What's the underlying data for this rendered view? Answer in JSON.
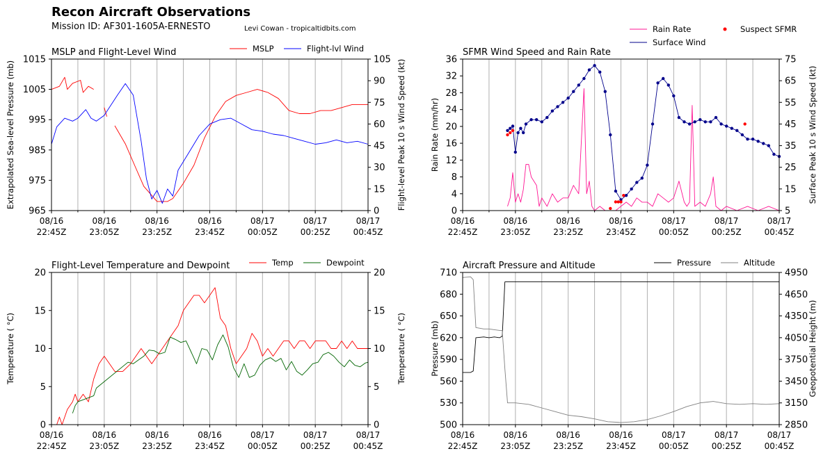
{
  "header": {
    "title": "Recon Aircraft Observations",
    "mission": "Mission ID: AF301-1605A-ERNESTO",
    "credit": "Levi Cowan - tropicaltidbits.com"
  },
  "x_ticks": [
    {
      "date": "08/16",
      "time": "22:45Z"
    },
    {
      "date": "08/16",
      "time": "23:05Z"
    },
    {
      "date": "08/16",
      "time": "23:25Z"
    },
    {
      "date": "08/16",
      "time": "23:45Z"
    },
    {
      "date": "08/17",
      "time": "00:05Z"
    },
    {
      "date": "08/17",
      "time": "00:25Z"
    },
    {
      "date": "08/17",
      "time": "00:45Z"
    }
  ],
  "chart_data": [
    {
      "type": "line",
      "title": "MSLP and Flight-Level Wind",
      "ylabel": "Extrapolated Sea-level Pressure (mb)",
      "y2label": "Flight-level Peak 10 s Wind Speed (kt)",
      "ylim": [
        965,
        1015
      ],
      "y2lim": [
        0,
        105
      ],
      "yticks": [
        965,
        975,
        985,
        995,
        1005,
        1015
      ],
      "y2ticks": [
        0,
        15,
        30,
        45,
        60,
        75,
        90,
        105
      ],
      "legend": "top-right",
      "grid": "vertical",
      "series": [
        {
          "name": "MSLP",
          "color": "#ff0000",
          "axis": "left",
          "x": [
            0,
            3,
            5,
            6,
            8,
            11,
            12,
            14,
            16,
            17,
            20,
            21,
            23,
            24,
            28,
            32,
            35,
            38,
            40,
            44,
            46,
            50,
            54,
            58,
            62,
            66,
            70,
            74,
            78,
            82,
            86,
            90,
            94,
            98,
            102,
            106,
            110,
            114,
            118,
            120
          ],
          "y": [
            1005,
            1006,
            1009,
            1005,
            1007,
            1008,
            1004,
            1006,
            1005,
            null,
            999,
            996,
            null,
            993,
            987,
            979,
            973,
            970,
            968,
            968,
            969,
            974,
            980,
            989,
            996,
            1001,
            1003,
            1004,
            1005,
            1004,
            1002,
            998,
            997,
            997,
            998,
            998,
            999,
            1000,
            1000,
            1000
          ]
        },
        {
          "name": "Flight-lvl Wind",
          "color": "#0000ff",
          "axis": "right",
          "x": [
            0,
            2,
            5,
            8,
            10,
            13,
            15,
            17,
            20,
            25,
            28,
            31,
            34,
            36,
            38,
            40,
            42,
            44,
            46,
            48,
            52,
            56,
            60,
            64,
            68,
            72,
            76,
            80,
            84,
            88,
            92,
            96,
            100,
            104,
            108,
            112,
            116,
            120
          ],
          "y": [
            46,
            58,
            64,
            62,
            64,
            70,
            64,
            62,
            66,
            80,
            88,
            80,
            48,
            22,
            8,
            14,
            5,
            15,
            10,
            28,
            40,
            52,
            60,
            63,
            64,
            60,
            56,
            55,
            53,
            52,
            50,
            48,
            46,
            47,
            49,
            47,
            48,
            46
          ]
        }
      ]
    },
    {
      "type": "line",
      "title": "SFMR Wind Speed and Rain Rate",
      "ylabel": "Rain Rate (mm/hr)",
      "y2label": "Surface Peak 10 s Wind Speed (kt)",
      "ylim": [
        0,
        36
      ],
      "y2lim": [
        5,
        75
      ],
      "yticks": [
        0,
        4,
        8,
        12,
        16,
        20,
        24,
        28,
        32,
        36
      ],
      "y2ticks": [
        5,
        15,
        25,
        35,
        45,
        55,
        65,
        75
      ],
      "legend": "above-plot",
      "grid": "vertical",
      "series": [
        {
          "name": "Rain Rate",
          "color": "#ff1493",
          "axis": "left",
          "x": [
            17,
            18,
            19,
            20,
            21,
            22,
            23,
            24,
            25,
            26,
            28,
            29,
            30,
            32,
            34,
            36,
            38,
            40,
            42,
            44,
            46,
            47,
            48,
            49,
            50,
            52,
            54,
            56,
            58,
            60,
            62,
            64,
            66,
            68,
            70,
            72,
            74,
            76,
            78,
            80,
            82,
            84,
            85,
            86,
            87,
            88,
            90,
            92,
            94,
            95,
            96,
            98,
            100,
            104,
            108,
            112,
            116,
            120
          ],
          "y": [
            1,
            3,
            9,
            2,
            4,
            2,
            5,
            11,
            11,
            8,
            6,
            1,
            3,
            1,
            4,
            2,
            3,
            3,
            6,
            4,
            29,
            4,
            7,
            1,
            0,
            1,
            0,
            0,
            0,
            1,
            2,
            1,
            3,
            2,
            2,
            1,
            4,
            3,
            2,
            3,
            7,
            2,
            1,
            2,
            25,
            1,
            2,
            1,
            4,
            8,
            1,
            0,
            1,
            0,
            1,
            0,
            1,
            0
          ]
        },
        {
          "name": "Surface Wind",
          "color": "#00008b",
          "axis": "right",
          "markers": true,
          "x": [
            17,
            18,
            19,
            20,
            21,
            22,
            23,
            24,
            26,
            28,
            30,
            32,
            34,
            36,
            38,
            40,
            42,
            44,
            46,
            48,
            50,
            52,
            54,
            56,
            58,
            60,
            62,
            64,
            66,
            68,
            70,
            72,
            74,
            76,
            78,
            80,
            82,
            84,
            86,
            88,
            90,
            92,
            94,
            96,
            98,
            100,
            102,
            104,
            106,
            108,
            110,
            112,
            114,
            116,
            118,
            120
          ],
          "y": [
            42,
            43,
            44,
            32,
            41,
            43,
            41,
            45,
            47,
            47,
            46,
            48,
            51,
            53,
            55,
            57,
            60,
            63,
            66,
            70,
            72,
            69,
            60,
            40,
            14,
            10,
            12,
            15,
            18,
            20,
            26,
            45,
            64,
            66,
            63,
            58,
            48,
            46,
            45,
            46,
            47,
            46,
            46,
            48,
            45,
            44,
            43,
            42,
            40,
            38,
            38,
            37,
            36,
            35,
            31,
            30
          ]
        },
        {
          "name": "Suspect SFMR",
          "color": "#ff0000",
          "axis": "right",
          "markers_only": true,
          "x": [
            17,
            18,
            19,
            56,
            58,
            59,
            60,
            61,
            107
          ],
          "y": [
            40,
            41,
            42,
            6,
            9,
            9,
            9,
            12,
            45
          ]
        }
      ]
    },
    {
      "type": "line",
      "title": "Flight-Level Temperature and Dewpoint",
      "ylabel": "Temperature ( °C)",
      "y2label": "Temperature ( °C)",
      "ylim": [
        0,
        20
      ],
      "y2lim": [
        0,
        20
      ],
      "yticks": [
        0,
        5,
        10,
        15,
        20
      ],
      "y2ticks": [
        0,
        5,
        10,
        15,
        20
      ],
      "legend": "top-right",
      "grid": "vertical",
      "series": [
        {
          "name": "Temp",
          "color": "#ff0000",
          "x": [
            2,
            3,
            4,
            6,
            8,
            9,
            10,
            12,
            14,
            16,
            18,
            20,
            22,
            24,
            27,
            30,
            32,
            34,
            36,
            38,
            40,
            42,
            44,
            46,
            48,
            50,
            52,
            54,
            56,
            58,
            60,
            62,
            64,
            66,
            68,
            70,
            72,
            74,
            76,
            78,
            80,
            82,
            84,
            86,
            88,
            90,
            92,
            94,
            96,
            98,
            100,
            102,
            104,
            106,
            108,
            110,
            112,
            114,
            116,
            118,
            120
          ],
          "y": [
            0,
            1,
            0,
            2,
            3,
            4,
            3,
            4,
            3,
            6,
            8,
            9,
            8,
            7,
            7,
            8,
            9,
            10,
            9,
            8,
            9,
            10,
            11,
            12,
            13,
            15,
            16,
            17,
            17,
            16,
            17,
            18,
            14,
            13,
            10,
            8,
            9,
            10,
            12,
            11,
            9,
            10,
            9,
            10,
            11,
            11,
            10,
            11,
            11,
            10,
            11,
            11,
            11,
            10,
            10,
            11,
            10,
            11,
            10,
            10,
            10
          ]
        },
        {
          "name": "Dewpoint",
          "color": "#006400",
          "x": [
            8,
            9,
            10,
            16,
            17,
            29,
            31,
            33,
            35,
            37,
            39,
            41,
            43,
            45,
            47,
            49,
            51,
            53,
            55,
            57,
            59,
            61,
            63,
            65,
            67,
            69,
            71,
            73,
            75,
            77,
            79,
            81,
            83,
            85,
            87,
            89,
            91,
            93,
            95,
            97,
            99,
            101,
            103,
            105,
            107,
            109,
            111,
            113,
            115,
            117,
            119,
            120
          ],
          "y": [
            1.5,
            2.5,
            3,
            3.8,
            4.8,
            8.2,
            8,
            8.5,
            9,
            9.8,
            9.7,
            9.3,
            9.5,
            11.5,
            11.2,
            10.8,
            11,
            9.5,
            8,
            10,
            9.8,
            8.5,
            10.5,
            11.8,
            10.2,
            7.5,
            6.2,
            8,
            6.2,
            6.5,
            7.8,
            8.5,
            8.8,
            8.3,
            8.7,
            7.2,
            8.3,
            7,
            6.5,
            7.2,
            8,
            8.2,
            9.2,
            9.5,
            9,
            8.2,
            7.6,
            8.5,
            7.8,
            7.6,
            8.1,
            8.2
          ]
        }
      ]
    },
    {
      "type": "line",
      "title": "Aircraft Pressure and Altitude",
      "ylabel": "Pressure (mb)",
      "y2label": "Geopotential Height (m)",
      "ylim": [
        500,
        710
      ],
      "y2lim": [
        2850,
        4950
      ],
      "yticks": [
        500,
        530,
        560,
        590,
        620,
        650,
        680,
        710
      ],
      "y2ticks": [
        2850,
        3150,
        3450,
        3750,
        4050,
        4350,
        4650,
        4950
      ],
      "legend": "top-right",
      "grid": "vertical",
      "series": [
        {
          "name": "Pressure",
          "color": "#000000",
          "axis": "left",
          "x": [
            0,
            3,
            4,
            5,
            8,
            10,
            12,
            14,
            15,
            16,
            17,
            30,
            60,
            90,
            120
          ],
          "y": [
            572,
            572,
            574,
            620,
            621,
            620,
            621,
            620,
            622,
            697,
            697,
            697,
            697,
            697,
            697
          ]
        },
        {
          "name": "Altitude",
          "color": "#808080",
          "axis": "right",
          "x": [
            0,
            3,
            4,
            5,
            8,
            10,
            12,
            14,
            15,
            16,
            17,
            20,
            25,
            30,
            35,
            40,
            45,
            50,
            55,
            60,
            65,
            70,
            75,
            80,
            85,
            90,
            95,
            100,
            105,
            110,
            115,
            120
          ],
          "y": [
            4880,
            4890,
            4850,
            4190,
            4170,
            4170,
            4160,
            4150,
            4150,
            3620,
            3150,
            3150,
            3130,
            3080,
            3030,
            2980,
            2960,
            2930,
            2890,
            2880,
            2890,
            2920,
            2970,
            3030,
            3100,
            3150,
            3170,
            3140,
            3130,
            3140,
            3130,
            3140
          ]
        }
      ]
    }
  ]
}
